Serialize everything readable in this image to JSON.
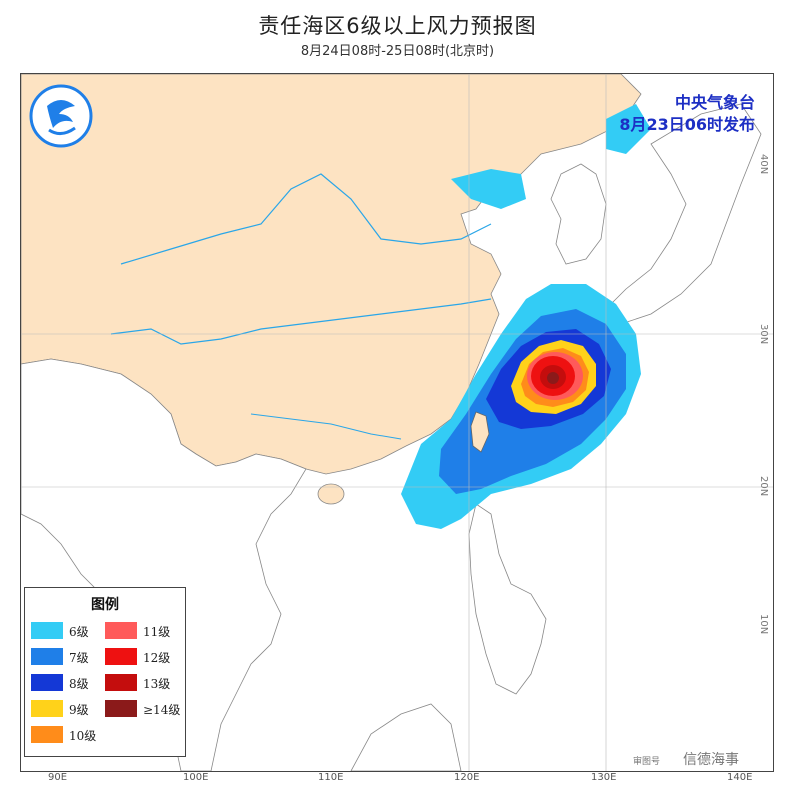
{
  "header": {
    "title": "责任海区6级以上风力预报图",
    "subtitle": "8月24日08时-25日08时(北京时)"
  },
  "issuer": {
    "line1": "中央气象台",
    "line2": "8月23日06时发布"
  },
  "axes": {
    "longitude_labels": [
      "90E",
      "100E",
      "110E",
      "120E",
      "130E",
      "140E"
    ],
    "latitude_labels": [
      "40N",
      "30N",
      "20N",
      "10N"
    ]
  },
  "legend": {
    "title": "图例",
    "items": [
      {
        "label": "6级",
        "color": "#33ccf5"
      },
      {
        "label": "7级",
        "color": "#1f7fe8"
      },
      {
        "label": "8级",
        "color": "#1438d6"
      },
      {
        "label": "9级",
        "color": "#ffd21a"
      },
      {
        "label": "10级",
        "color": "#ff8c1a"
      },
      {
        "label": "11级",
        "color": "#ff5a5a"
      },
      {
        "label": "12级",
        "color": "#ee1111"
      },
      {
        "label": "13级",
        "color": "#c40d0d"
      },
      {
        "label": "≥14级",
        "color": "#8b1a1a"
      }
    ]
  },
  "colors": {
    "land_china": "#fde3c2",
    "land_other": "#ffffff",
    "sea": "#ffffff",
    "river": "#2aa6e8",
    "issuer_text": "#1d2fc4"
  },
  "footer": {
    "stamp": "审图号",
    "watermark": "信德海事"
  }
}
